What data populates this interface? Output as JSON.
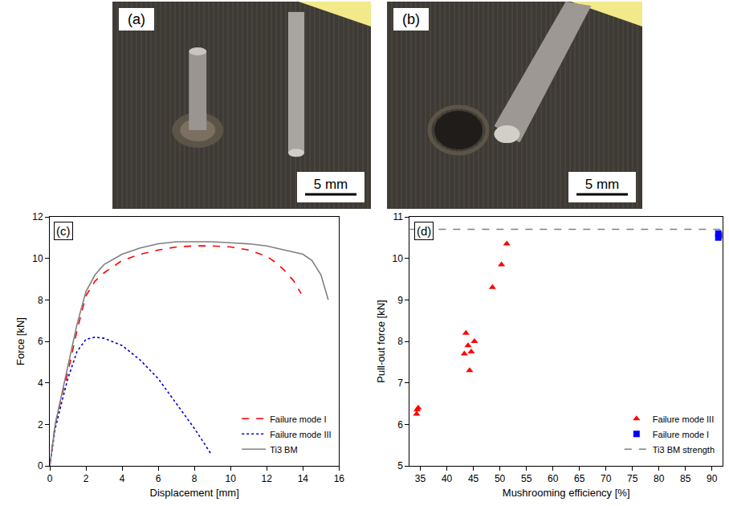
{
  "photos": [
    {
      "label": "(a)",
      "scale_bar": "5 mm"
    },
    {
      "label": "(b)",
      "scale_bar": "5 mm"
    }
  ],
  "chart_data": [
    {
      "type": "line",
      "title": "(c)",
      "x_label": "Displacement [mm]",
      "y_label": "Force [kN]",
      "xlim": [
        0,
        16
      ],
      "xticks": [
        0,
        2,
        4,
        6,
        8,
        10,
        12,
        14,
        16
      ],
      "ylim": [
        0,
        12
      ],
      "yticks": [
        0,
        2,
        4,
        6,
        8,
        10,
        12
      ],
      "grid": false,
      "legend": "bottom right",
      "series": [
        {
          "name": "Failure mode I",
          "color": "#ff0000",
          "line_style": "dash",
          "x": [
            0,
            0.3,
            0.7,
            1,
            1.5,
            2,
            2.5,
            3,
            4,
            5,
            6,
            7,
            8,
            9,
            10,
            11,
            12,
            12.5,
            13,
            13.5,
            13.9
          ],
          "values": [
            0,
            2,
            3.5,
            4.5,
            6.5,
            8.2,
            8.9,
            9.3,
            9.9,
            10.2,
            10.4,
            10.55,
            10.6,
            10.6,
            10.55,
            10.4,
            10.1,
            9.8,
            9.4,
            8.9,
            8.3
          ]
        },
        {
          "name": "Failure mode III",
          "color": "#0000cc",
          "line_style": "dot",
          "x": [
            0,
            0.3,
            0.7,
            1,
            1.5,
            2,
            2.5,
            3,
            4,
            5,
            6,
            7,
            8,
            8.9
          ],
          "values": [
            0,
            1.8,
            3.2,
            4.2,
            5.5,
            6.1,
            6.2,
            6.15,
            5.8,
            5.1,
            4.2,
            3.0,
            1.8,
            0.6
          ]
        },
        {
          "name": "Ti3 BM",
          "color": "#808080",
          "line_style": "solid",
          "x": [
            0,
            0.3,
            0.7,
            1,
            1.5,
            2,
            2.5,
            3,
            4,
            5,
            6,
            7,
            8,
            9,
            10,
            11,
            12,
            13,
            14,
            14.5,
            15,
            15.4
          ],
          "values": [
            0,
            2,
            3.6,
            4.8,
            6.8,
            8.4,
            9.2,
            9.7,
            10.2,
            10.5,
            10.7,
            10.8,
            10.8,
            10.8,
            10.75,
            10.7,
            10.6,
            10.4,
            10.2,
            9.9,
            9.2,
            8.0
          ]
        }
      ]
    },
    {
      "type": "scatter",
      "title": "(d)",
      "x_label": "Mushrooming efficiency [%]",
      "y_label": "Pull-out force [kN]",
      "xlim": [
        33,
        92
      ],
      "xticks": [
        35,
        40,
        45,
        50,
        55,
        60,
        65,
        70,
        75,
        80,
        85,
        90
      ],
      "ylim": [
        5,
        11
      ],
      "yticks": [
        5,
        6,
        7,
        8,
        9,
        10,
        11
      ],
      "grid": false,
      "legend": "bottom right",
      "series": [
        {
          "name": "Failure mode III",
          "color": "#ff0000",
          "marker": "triangle-up",
          "type": "scatter",
          "x": [
            34.3,
            34.6,
            34.4,
            43.3,
            43.6,
            44.0,
            44.3,
            44.6,
            45.2,
            48.6,
            50.3,
            51.3
          ],
          "values": [
            6.25,
            6.4,
            6.35,
            7.7,
            8.2,
            7.9,
            7.3,
            7.75,
            8.0,
            9.3,
            9.85,
            10.35
          ]
        },
        {
          "name": "Failure mode I",
          "color": "#0000ff",
          "marker": "square",
          "type": "scatter",
          "x": [
            91.2,
            91.2,
            91.3
          ],
          "values": [
            10.6,
            10.5,
            10.55
          ]
        },
        {
          "name": "Ti3 BM strength",
          "color": "#808080",
          "line_style": "dash",
          "type": "line",
          "x": [
            33,
            92
          ],
          "values": [
            10.7,
            10.7
          ]
        }
      ]
    }
  ]
}
